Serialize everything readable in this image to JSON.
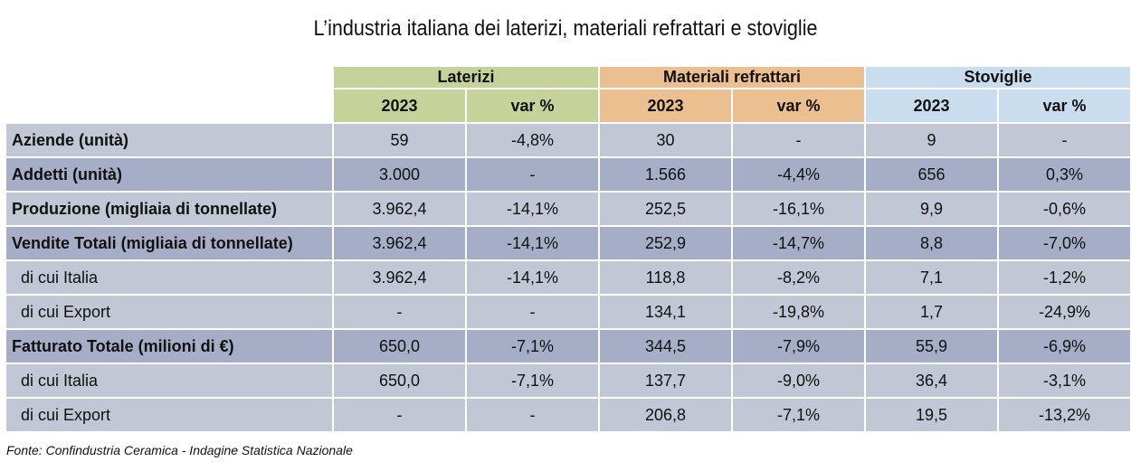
{
  "title": "L’industria italiana dei laterizi, materiali refrattari e stoviglie",
  "groups": [
    {
      "label": "Laterizi",
      "color": "#c5d39a"
    },
    {
      "label": "Materiali refrattari",
      "color": "#ebbf90"
    },
    {
      "label": "Stoviglie",
      "color": "#c9ddee"
    }
  ],
  "subheaders": [
    "2023",
    "var %",
    "2023",
    "var %",
    "2023",
    "var %"
  ],
  "row_colors": {
    "light": "#c2c7d6",
    "dark": "#a5aec6"
  },
  "rows": [
    {
      "label": "Aziende (unità)",
      "bold": true,
      "sub": false,
      "shade": "light",
      "values": [
        "59",
        "-4,8%",
        "30",
        "-",
        "9",
        "-"
      ]
    },
    {
      "label": "Addetti (unità)",
      "bold": true,
      "sub": false,
      "shade": "dark",
      "values": [
        "3.000",
        "-",
        "1.566",
        "-4,4%",
        "656",
        "0,3%"
      ]
    },
    {
      "label": "Produzione (migliaia di tonnellate)",
      "bold": true,
      "sub": false,
      "shade": "light",
      "values": [
        "3.962,4",
        "-14,1%",
        "252,5",
        "-16,1%",
        "9,9",
        "-0,6%"
      ]
    },
    {
      "label": "Vendite Totali (migliaia di tonnellate)",
      "bold": true,
      "sub": false,
      "shade": "dark",
      "values": [
        "3.962,4",
        "-14,1%",
        "252,9",
        "-14,7%",
        "8,8",
        "-7,0%"
      ]
    },
    {
      "label": "di cui Italia",
      "bold": false,
      "sub": true,
      "shade": "light",
      "values": [
        "3.962,4",
        "-14,1%",
        "118,8",
        "-8,2%",
        "7,1",
        "-1,2%"
      ]
    },
    {
      "label": "di cui Export",
      "bold": false,
      "sub": true,
      "shade": "light",
      "values": [
        "-",
        "-",
        "134,1",
        "-19,8%",
        "1,7",
        "-24,9%"
      ]
    },
    {
      "label": "Fatturato Totale (milioni di €)",
      "bold": true,
      "sub": false,
      "shade": "dark",
      "values": [
        "650,0",
        "-7,1%",
        "344,5",
        "-7,9%",
        "55,9",
        "-6,9%"
      ]
    },
    {
      "label": "di cui Italia",
      "bold": false,
      "sub": true,
      "shade": "light",
      "values": [
        "650,0",
        "-7,1%",
        "137,7",
        "-9,0%",
        "36,4",
        "-3,1%"
      ]
    },
    {
      "label": "di cui Export",
      "bold": false,
      "sub": true,
      "shade": "light",
      "values": [
        "-",
        "-",
        "206,8",
        "-7,1%",
        "19,5",
        "-13,2%"
      ]
    }
  ],
  "source": "Fonte: Confindustria Ceramica - Indagine Statistica Nazionale"
}
